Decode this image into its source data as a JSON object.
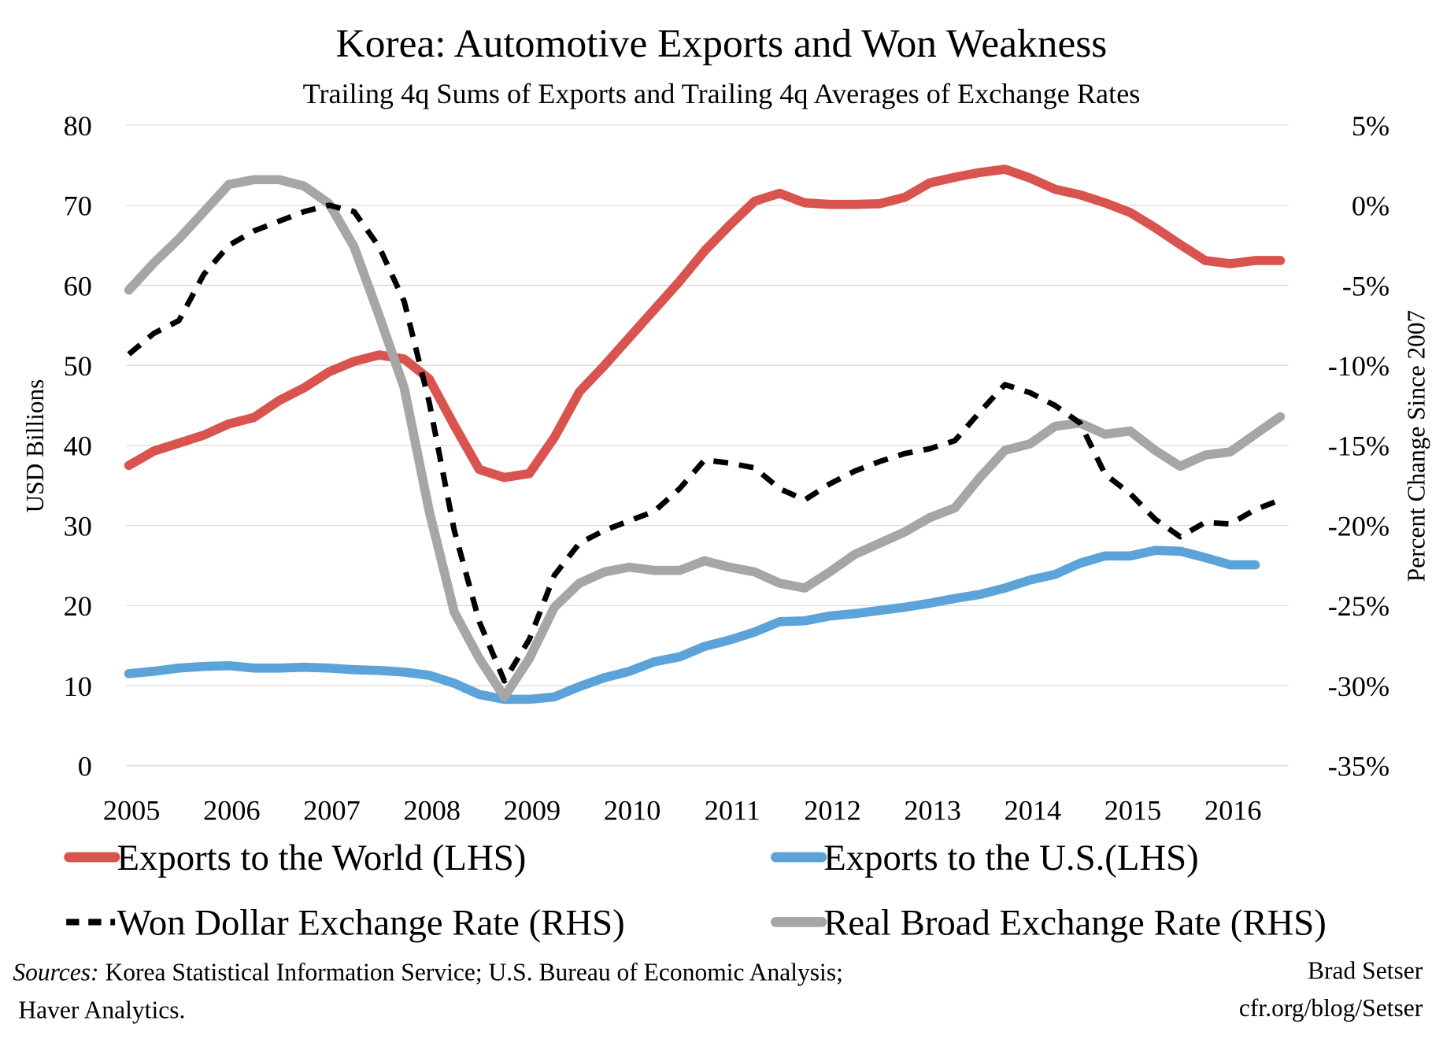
{
  "chart_data": {
    "type": "line",
    "title": "Korea: Automotive Exports and Won Weakness",
    "subtitle": "Trailing 4q Sums of Exports and Trailing 4q Averages of Exchange Rates",
    "ylabel": "USD Billions",
    "y2label": "Percent Change Since 2007",
    "ylim": [
      0,
      80
    ],
    "y2lim": [
      -35,
      5
    ],
    "yticks": [
      "0",
      "10",
      "20",
      "30",
      "40",
      "50",
      "60",
      "70",
      "80"
    ],
    "y2ticks": [
      "-35%",
      "-30%",
      "-25%",
      "-20%",
      "-15%",
      "-10%",
      "-5%",
      "0%",
      "5%"
    ],
    "xticks": [
      "2005",
      "2006",
      "2007",
      "2008",
      "2009",
      "2010",
      "2011",
      "2012",
      "2013",
      "2014",
      "2015",
      "2016"
    ],
    "xlim": [
      2005,
      2016.5
    ],
    "grid": true,
    "legend_placement": "bottom",
    "x_start": 2005,
    "x_step": 0.25,
    "series": [
      {
        "name": "Exports to the World (LHS)",
        "axis": "left",
        "color": "#d9534f",
        "style": "solid",
        "values": [
          37.5,
          39.3,
          40.3,
          41.3,
          42.7,
          43.5,
          45.6,
          47.2,
          49.2,
          50.5,
          51.3,
          50.8,
          48.3,
          42.5,
          37,
          36,
          36.5,
          41,
          46.7,
          50,
          53.5,
          57,
          60.5,
          64.3,
          67.5,
          70.5,
          71.5,
          70.3,
          70.1,
          70.1,
          70.2,
          71,
          72.8,
          73.5,
          74.1,
          74.5,
          73.4,
          72,
          71.3,
          70.3,
          69.1,
          67.2,
          65.1,
          63.1,
          62.7,
          63.1,
          63.1
        ]
      },
      {
        "name": "Exports to the U.S.(LHS)",
        "axis": "left",
        "color": "#5ba3d9",
        "style": "solid",
        "values": [
          11.5,
          11.8,
          12.2,
          12.4,
          12.5,
          12.2,
          12.2,
          12.3,
          12.2,
          12,
          11.9,
          11.7,
          11.3,
          10.3,
          8.9,
          8.3,
          8.3,
          8.6,
          9.9,
          11,
          11.8,
          13,
          13.6,
          14.9,
          15.7,
          16.7,
          18,
          18.1,
          18.7,
          19,
          19.4,
          19.8,
          20.3,
          20.9,
          21.4,
          22.2,
          23.2,
          23.9,
          25.3,
          26.2,
          26.2,
          26.9,
          26.8,
          26,
          25.1,
          25.1
        ]
      },
      {
        "name": "Won Dollar Exchange Rate (RHS)",
        "axis": "right",
        "color": "#000000",
        "style": "dashed",
        "values": [
          -9.3,
          -8,
          -7.2,
          -4.3,
          -2.5,
          -1.6,
          -1,
          -0.4,
          0,
          -0.4,
          -2.6,
          -6,
          -12.3,
          -20.3,
          -26,
          -29.7,
          -27.1,
          -23.1,
          -21.1,
          -20.3,
          -19.7,
          -19.1,
          -17.7,
          -15.9,
          -16.1,
          -16.4,
          -17.7,
          -18.4,
          -17.4,
          -16.6,
          -16,
          -15.5,
          -15.2,
          -14.7,
          -12.9,
          -11.2,
          -11.7,
          -12.5,
          -13.6,
          -16.8,
          -18,
          -19.6,
          -20.7,
          -19.8,
          -19.9,
          -19,
          -18.4
        ]
      },
      {
        "name": "Real Broad Exchange Rate (RHS)",
        "axis": "right",
        "color": "#a6a6a6",
        "style": "solid",
        "values": [
          -5.3,
          -3.6,
          -2.1,
          -0.4,
          1.3,
          1.6,
          1.6,
          1.2,
          0.1,
          -2.6,
          -6.9,
          -11.4,
          -19.1,
          -25.4,
          -28.3,
          -30.7,
          -28.3,
          -25.1,
          -23.6,
          -22.9,
          -22.6,
          -22.8,
          -22.8,
          -22.2,
          -22.6,
          -22.9,
          -23.6,
          -23.9,
          -22.9,
          -21.8,
          -21.1,
          -20.4,
          -19.5,
          -18.9,
          -17,
          -15.3,
          -14.9,
          -13.8,
          -13.6,
          -14.3,
          -14.1,
          -15.3,
          -16.3,
          -15.6,
          -15.4,
          -14.3,
          -13.2
        ]
      }
    ]
  },
  "footer": {
    "sources_label": "Sources:",
    "sources_text": " Korea Statistical Information Service; U.S. Bureau of Economic Analysis;",
    "sources_text2": "Haver Analytics.",
    "author": "Brad Setser",
    "url": "cfr.org/blog/Setser"
  }
}
